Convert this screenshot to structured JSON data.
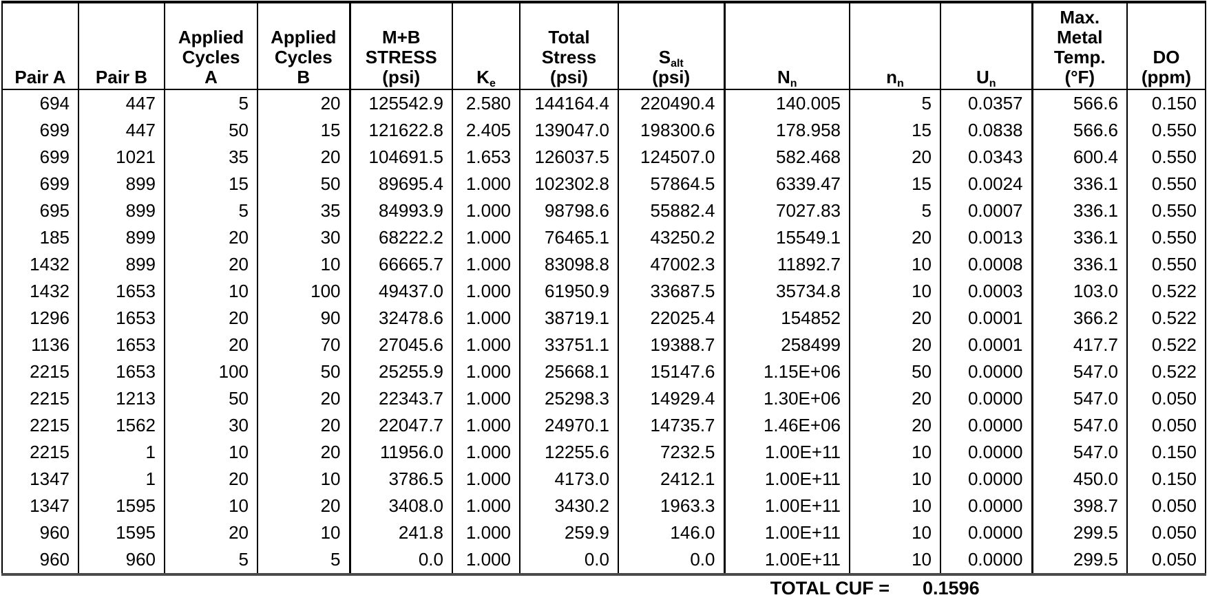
{
  "table": {
    "columns": [
      {
        "id": "pair-a",
        "label_lines": [
          "Pair A"
        ]
      },
      {
        "id": "pair-b",
        "label_lines": [
          "Pair B"
        ]
      },
      {
        "id": "applied-cycles-a",
        "label_lines": [
          "Applied",
          "Cycles",
          "A"
        ]
      },
      {
        "id": "applied-cycles-b",
        "label_lines": [
          "Applied",
          "Cycles",
          "B"
        ]
      },
      {
        "id": "mb-stress",
        "label_lines": [
          "M+B",
          "STRESS",
          "(psi)"
        ]
      },
      {
        "id": "ke",
        "label_lines": [
          "K{e}"
        ]
      },
      {
        "id": "total-stress",
        "label_lines": [
          "Total",
          "Stress",
          "(psi)"
        ]
      },
      {
        "id": "s-alt",
        "label_lines": [
          "S{alt}",
          "(psi)"
        ]
      },
      {
        "id": "n-allowable",
        "label_lines": [
          "N{n}"
        ]
      },
      {
        "id": "n-applied",
        "label_lines": [
          "n{n}"
        ]
      },
      {
        "id": "u-n",
        "label_lines": [
          "U{n}"
        ]
      },
      {
        "id": "max-metal-temp",
        "label_lines": [
          "Max.",
          "Metal",
          "Temp.",
          "(°F)"
        ]
      },
      {
        "id": "do-ppm",
        "label_lines": [
          "DO",
          "(ppm)"
        ]
      }
    ],
    "rows": [
      [
        "694",
        "447",
        "5",
        "20",
        "125542.9",
        "2.580",
        "144164.4",
        "220490.4",
        "140.005",
        "5",
        "0.0357",
        "566.6",
        "0.150"
      ],
      [
        "699",
        "447",
        "50",
        "15",
        "121622.8",
        "2.405",
        "139047.0",
        "198300.6",
        "178.958",
        "15",
        "0.0838",
        "566.6",
        "0.550"
      ],
      [
        "699",
        "1021",
        "35",
        "20",
        "104691.5",
        "1.653",
        "126037.5",
        "124507.0",
        "582.468",
        "20",
        "0.0343",
        "600.4",
        "0.550"
      ],
      [
        "699",
        "899",
        "15",
        "50",
        "89695.4",
        "1.000",
        "102302.8",
        "57864.5",
        "6339.47",
        "15",
        "0.0024",
        "336.1",
        "0.550"
      ],
      [
        "695",
        "899",
        "5",
        "35",
        "84993.9",
        "1.000",
        "98798.6",
        "55882.4",
        "7027.83",
        "5",
        "0.0007",
        "336.1",
        "0.550"
      ],
      [
        "185",
        "899",
        "20",
        "30",
        "68222.2",
        "1.000",
        "76465.1",
        "43250.2",
        "15549.1",
        "20",
        "0.0013",
        "336.1",
        "0.550"
      ],
      [
        "1432",
        "899",
        "20",
        "10",
        "66665.7",
        "1.000",
        "83098.8",
        "47002.3",
        "11892.7",
        "10",
        "0.0008",
        "336.1",
        "0.550"
      ],
      [
        "1432",
        "1653",
        "10",
        "100",
        "49437.0",
        "1.000",
        "61950.9",
        "33687.5",
        "35734.8",
        "10",
        "0.0003",
        "103.0",
        "0.522"
      ],
      [
        "1296",
        "1653",
        "20",
        "90",
        "32478.6",
        "1.000",
        "38719.1",
        "22025.4",
        "154852",
        "20",
        "0.0001",
        "366.2",
        "0.522"
      ],
      [
        "1136",
        "1653",
        "20",
        "70",
        "27045.6",
        "1.000",
        "33751.1",
        "19388.7",
        "258499",
        "20",
        "0.0001",
        "417.7",
        "0.522"
      ],
      [
        "2215",
        "1653",
        "100",
        "50",
        "25255.9",
        "1.000",
        "25668.1",
        "15147.6",
        "1.15E+06",
        "50",
        "0.0000",
        "547.0",
        "0.522"
      ],
      [
        "2215",
        "1213",
        "50",
        "20",
        "22343.7",
        "1.000",
        "25298.3",
        "14929.4",
        "1.30E+06",
        "20",
        "0.0000",
        "547.0",
        "0.050"
      ],
      [
        "2215",
        "1562",
        "30",
        "20",
        "22047.7",
        "1.000",
        "24970.1",
        "14735.7",
        "1.46E+06",
        "20",
        "0.0000",
        "547.0",
        "0.050"
      ],
      [
        "2215",
        "1",
        "10",
        "20",
        "11956.0",
        "1.000",
        "12255.6",
        "7232.5",
        "1.00E+11",
        "10",
        "0.0000",
        "547.0",
        "0.150"
      ],
      [
        "1347",
        "1",
        "20",
        "10",
        "3786.5",
        "1.000",
        "4173.0",
        "2412.1",
        "1.00E+11",
        "10",
        "0.0000",
        "450.0",
        "0.150"
      ],
      [
        "1347",
        "1595",
        "10",
        "20",
        "3408.0",
        "1.000",
        "3430.2",
        "1963.3",
        "1.00E+11",
        "10",
        "0.0000",
        "398.7",
        "0.050"
      ],
      [
        "960",
        "1595",
        "20",
        "10",
        "241.8",
        "1.000",
        "259.9",
        "146.0",
        "1.00E+11",
        "10",
        "0.0000",
        "299.5",
        "0.050"
      ],
      [
        "960",
        "960",
        "5",
        "5",
        "0.0",
        "1.000",
        "0.0",
        "0.0",
        "1.00E+11",
        "10",
        "0.0000",
        "299.5",
        "0.050"
      ]
    ],
    "footer": {
      "label": "TOTAL CUF =",
      "value": "0.1596"
    }
  }
}
